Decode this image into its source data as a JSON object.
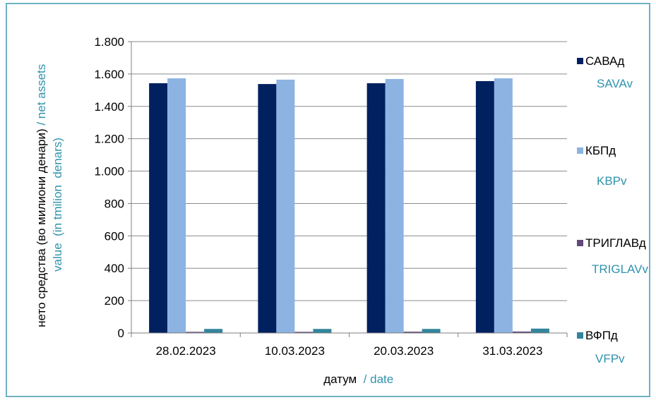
{
  "chart_data": {
    "type": "bar",
    "categories": [
      "28.02.2023",
      "10.03.2023",
      "20.03.2023",
      "31.03.2023"
    ],
    "series": [
      {
        "name": "САВАд",
        "name_en": "SAVAv",
        "color": "#002060",
        "values": [
          1543,
          1538,
          1543,
          1556
        ]
      },
      {
        "name": "КБПд",
        "name_en": "KBPv",
        "color": "#8db3e2",
        "values": [
          1573,
          1565,
          1569,
          1573
        ]
      },
      {
        "name": "ТРИГЛАВд",
        "name_en": "TRIGLAVv",
        "color": "#604a7b",
        "values": [
          7,
          7,
          8,
          9
        ]
      },
      {
        "name": "ВФПд",
        "name_en": "VFPv",
        "color": "#31859c",
        "values": [
          25,
          25,
          25,
          27
        ]
      }
    ],
    "ylim": [
      0,
      1800
    ],
    "yticks": [
      0,
      200,
      400,
      600,
      800,
      1000,
      1200,
      1400,
      1600,
      1800
    ],
    "ytick_labels": [
      "0",
      "200",
      "400",
      "600",
      "800",
      "1.000",
      "1.200",
      "1.400",
      "1.600",
      "1.800"
    ],
    "xlabel": {
      "local": "датум",
      "en": "  / date"
    },
    "ylabel": {
      "line1_local": "нето средства (во милиони денари)",
      "line1_en": " / net assets",
      "line2_en": "value  (in tmilion  denars)"
    },
    "grid": true,
    "legend_position": "right"
  },
  "colors": {
    "text": "#000000",
    "accent_teal": "#2f93ad",
    "border": "#3f98ad",
    "grid": "#8c8c8c",
    "axis": "#7f7f7f"
  }
}
